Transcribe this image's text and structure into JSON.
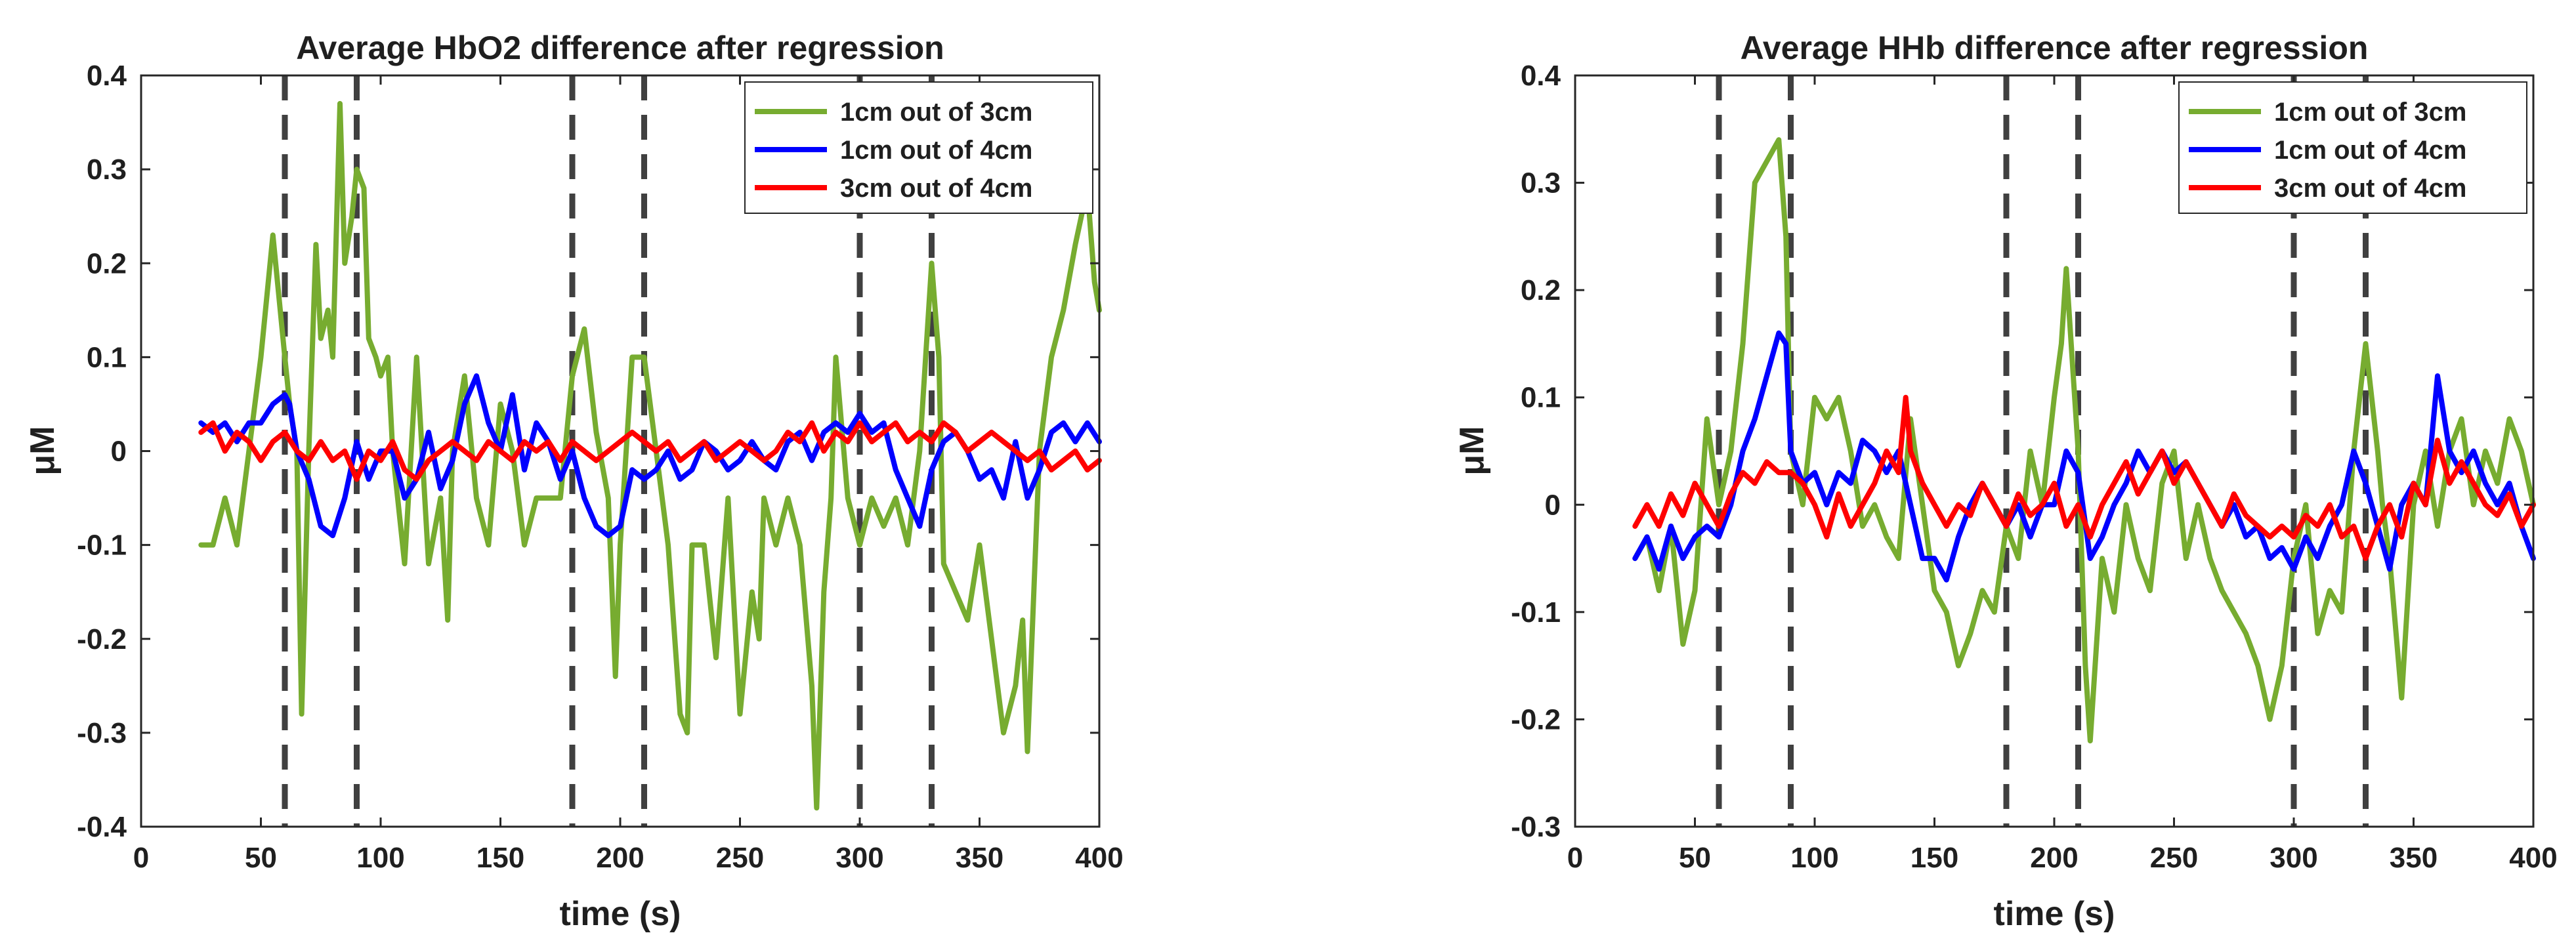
{
  "chart_data": [
    {
      "type": "line",
      "title": "Average HbO2 difference after regression",
      "xlabel": "time (s)",
      "ylabel": "μM",
      "xlim": [
        0,
        400
      ],
      "ylim": [
        -0.4,
        0.4
      ],
      "xticks": [
        0,
        50,
        100,
        150,
        200,
        250,
        300,
        350,
        400
      ],
      "xtick_labels": [
        "0",
        "50",
        "100",
        "150",
        "200",
        "250",
        "300",
        "350",
        "400"
      ],
      "yticks": [
        -0.4,
        -0.3,
        -0.2,
        -0.1,
        0,
        0.1,
        0.2,
        0.3,
        0.4
      ],
      "ytick_labels": [
        "-0.4",
        "-0.3",
        "-0.2",
        "-0.1",
        "0",
        "0.1",
        "0.2",
        "0.3",
        "0.4"
      ],
      "vlines": [
        60,
        90,
        180,
        210,
        300,
        330
      ],
      "legend_position": "top-right",
      "series": [
        {
          "name": "1cm out of 3cm",
          "color": "#77AC30",
          "x": [
            25,
            30,
            35,
            40,
            45,
            50,
            55,
            60,
            62,
            65,
            67,
            70,
            73,
            75,
            78,
            80,
            83,
            85,
            88,
            90,
            93,
            95,
            98,
            100,
            103,
            105,
            110,
            115,
            120,
            125,
            128,
            130,
            135,
            140,
            145,
            150,
            155,
            160,
            165,
            170,
            175,
            180,
            185,
            190,
            195,
            198,
            200,
            205,
            210,
            215,
            220,
            225,
            228,
            230,
            235,
            240,
            245,
            250,
            255,
            258,
            260,
            265,
            270,
            275,
            280,
            282,
            285,
            288,
            290,
            295,
            300,
            305,
            310,
            315,
            320,
            325,
            330,
            333,
            335,
            340,
            345,
            350,
            355,
            360,
            365,
            368,
            370,
            375,
            380,
            385,
            390,
            395,
            398,
            400
          ],
          "values": [
            -0.1,
            -0.1,
            -0.05,
            -0.1,
            0.0,
            0.1,
            0.23,
            0.1,
            0.05,
            0.0,
            -0.28,
            0.0,
            0.22,
            0.12,
            0.15,
            0.1,
            0.37,
            0.2,
            0.25,
            0.3,
            0.28,
            0.12,
            0.1,
            0.08,
            0.1,
            0.0,
            -0.12,
            0.1,
            -0.12,
            -0.05,
            -0.18,
            0.0,
            0.08,
            -0.05,
            -0.1,
            0.05,
            0.0,
            -0.1,
            -0.05,
            -0.05,
            -0.05,
            0.08,
            0.13,
            0.02,
            -0.05,
            -0.24,
            -0.1,
            0.1,
            0.1,
            0.0,
            -0.1,
            -0.28,
            -0.3,
            -0.1,
            -0.1,
            -0.22,
            -0.05,
            -0.28,
            -0.15,
            -0.2,
            -0.05,
            -0.1,
            -0.05,
            -0.1,
            -0.25,
            -0.38,
            -0.15,
            -0.05,
            0.1,
            -0.05,
            -0.1,
            -0.05,
            -0.08,
            -0.05,
            -0.1,
            0.0,
            0.2,
            0.1,
            -0.12,
            -0.15,
            -0.18,
            -0.1,
            -0.2,
            -0.3,
            -0.25,
            -0.18,
            -0.32,
            0.0,
            0.1,
            0.15,
            0.22,
            0.28,
            0.18,
            0.15
          ]
        },
        {
          "name": "1cm out of 4cm",
          "color": "#0000FF",
          "x": [
            25,
            30,
            35,
            40,
            45,
            50,
            55,
            60,
            62,
            65,
            70,
            75,
            80,
            85,
            90,
            95,
            100,
            105,
            110,
            115,
            120,
            125,
            130,
            135,
            140,
            145,
            150,
            155,
            160,
            165,
            170,
            175,
            180,
            185,
            190,
            195,
            200,
            205,
            210,
            215,
            220,
            225,
            230,
            235,
            240,
            245,
            250,
            255,
            260,
            265,
            270,
            275,
            280,
            285,
            290,
            295,
            300,
            305,
            310,
            315,
            320,
            325,
            330,
            335,
            340,
            345,
            350,
            355,
            360,
            365,
            370,
            375,
            380,
            385,
            390,
            395,
            400
          ],
          "values": [
            0.03,
            0.02,
            0.03,
            0.01,
            0.03,
            0.03,
            0.05,
            0.06,
            0.05,
            0.0,
            -0.03,
            -0.08,
            -0.09,
            -0.05,
            0.01,
            -0.03,
            0.0,
            0.0,
            -0.05,
            -0.03,
            0.02,
            -0.04,
            -0.01,
            0.05,
            0.08,
            0.03,
            0.0,
            0.06,
            -0.02,
            0.03,
            0.01,
            -0.03,
            0.0,
            -0.05,
            -0.08,
            -0.09,
            -0.08,
            -0.02,
            -0.03,
            -0.02,
            0.0,
            -0.03,
            -0.02,
            0.01,
            0.0,
            -0.02,
            -0.01,
            0.01,
            -0.01,
            -0.02,
            0.01,
            0.02,
            -0.01,
            0.02,
            0.03,
            0.02,
            0.04,
            0.02,
            0.03,
            -0.02,
            -0.05,
            -0.08,
            -0.02,
            0.01,
            0.02,
            0.0,
            -0.03,
            -0.02,
            -0.05,
            0.01,
            -0.05,
            -0.02,
            0.02,
            0.03,
            0.01,
            0.03,
            0.01
          ]
        },
        {
          "name": "3cm out of 4cm",
          "color": "#FF0000",
          "x": [
            25,
            30,
            35,
            40,
            45,
            50,
            55,
            60,
            65,
            70,
            75,
            80,
            85,
            90,
            95,
            100,
            105,
            110,
            115,
            120,
            125,
            130,
            135,
            140,
            145,
            150,
            155,
            160,
            165,
            170,
            175,
            180,
            185,
            190,
            195,
            200,
            205,
            210,
            215,
            220,
            225,
            230,
            235,
            240,
            245,
            250,
            255,
            260,
            265,
            270,
            275,
            280,
            285,
            290,
            295,
            300,
            305,
            310,
            315,
            320,
            325,
            330,
            335,
            340,
            345,
            350,
            355,
            360,
            365,
            370,
            375,
            380,
            385,
            390,
            395,
            400
          ],
          "values": [
            0.02,
            0.03,
            0.0,
            0.02,
            0.01,
            -0.01,
            0.01,
            0.02,
            0.0,
            -0.01,
            0.01,
            -0.01,
            0.0,
            -0.03,
            0.0,
            -0.01,
            0.01,
            -0.02,
            -0.03,
            -0.01,
            0.0,
            0.01,
            0.0,
            -0.01,
            0.01,
            0.0,
            -0.01,
            0.01,
            0.0,
            0.01,
            -0.01,
            0.01,
            0.0,
            -0.01,
            0.0,
            0.01,
            0.02,
            0.01,
            0.0,
            0.01,
            -0.01,
            0.0,
            0.01,
            -0.01,
            0.0,
            0.01,
            0.0,
            -0.01,
            0.0,
            0.02,
            0.01,
            0.03,
            0.0,
            0.02,
            0.01,
            0.03,
            0.01,
            0.02,
            0.03,
            0.01,
            0.02,
            0.01,
            0.03,
            0.02,
            0.0,
            0.01,
            0.02,
            0.01,
            0.0,
            -0.01,
            0.0,
            -0.02,
            -0.01,
            0.0,
            -0.02,
            -0.01
          ]
        }
      ]
    },
    {
      "type": "line",
      "title": "Average HHb difference after regression",
      "xlabel": "time (s)",
      "ylabel": "μM",
      "xlim": [
        0,
        400
      ],
      "ylim": [
        -0.3,
        0.4
      ],
      "xticks": [
        0,
        50,
        100,
        150,
        200,
        250,
        300,
        350,
        400
      ],
      "xtick_labels": [
        "0",
        "50",
        "100",
        "150",
        "200",
        "250",
        "300",
        "350",
        "400"
      ],
      "yticks": [
        -0.3,
        -0.2,
        -0.1,
        0,
        0.1,
        0.2,
        0.3,
        0.4
      ],
      "ytick_labels": [
        "-0.3",
        "-0.2",
        "-0.1",
        "0",
        "0.1",
        "0.2",
        "0.3",
        "0.4"
      ],
      "vlines": [
        60,
        90,
        180,
        210,
        300,
        330
      ],
      "legend_position": "top-right",
      "series": [
        {
          "name": "1cm out of 3cm",
          "color": "#77AC30",
          "x": [
            25,
            30,
            35,
            40,
            45,
            50,
            55,
            60,
            65,
            70,
            75,
            80,
            85,
            88,
            90,
            95,
            100,
            105,
            110,
            115,
            120,
            125,
            130,
            135,
            140,
            145,
            150,
            155,
            160,
            165,
            170,
            175,
            180,
            185,
            190,
            195,
            200,
            203,
            205,
            210,
            213,
            215,
            220,
            225,
            230,
            235,
            240,
            245,
            250,
            255,
            260,
            265,
            270,
            275,
            280,
            285,
            290,
            295,
            300,
            305,
            310,
            315,
            320,
            325,
            330,
            335,
            337,
            340,
            345,
            350,
            355,
            360,
            365,
            370,
            375,
            380,
            385,
            390,
            395,
            400
          ],
          "values": [
            -0.05,
            -0.03,
            -0.08,
            -0.02,
            -0.13,
            -0.08,
            0.08,
            0.0,
            0.05,
            0.15,
            0.3,
            0.32,
            0.34,
            0.25,
            0.05,
            0.0,
            0.1,
            0.08,
            0.1,
            0.05,
            -0.02,
            0.0,
            -0.03,
            -0.05,
            0.08,
            0.0,
            -0.08,
            -0.1,
            -0.15,
            -0.12,
            -0.08,
            -0.1,
            -0.02,
            -0.05,
            0.05,
            0.0,
            0.1,
            0.15,
            0.22,
            0.05,
            -0.15,
            -0.22,
            -0.05,
            -0.1,
            0.0,
            -0.05,
            -0.08,
            0.02,
            0.05,
            -0.05,
            0.0,
            -0.05,
            -0.08,
            -0.1,
            -0.12,
            -0.15,
            -0.2,
            -0.15,
            -0.05,
            0.0,
            -0.12,
            -0.08,
            -0.1,
            0.05,
            0.15,
            0.05,
            0.0,
            -0.05,
            -0.18,
            0.0,
            0.05,
            -0.02,
            0.05,
            0.08,
            0.0,
            0.05,
            0.02,
            0.08,
            0.05,
            0.0
          ]
        },
        {
          "name": "1cm out of 4cm",
          "color": "#0000FF",
          "x": [
            25,
            30,
            35,
            40,
            45,
            50,
            55,
            60,
            65,
            70,
            75,
            80,
            85,
            88,
            90,
            95,
            100,
            105,
            110,
            115,
            120,
            125,
            130,
            135,
            140,
            145,
            150,
            155,
            160,
            165,
            170,
            175,
            180,
            185,
            190,
            195,
            200,
            205,
            210,
            215,
            220,
            225,
            230,
            235,
            240,
            245,
            250,
            255,
            260,
            265,
            270,
            275,
            280,
            285,
            290,
            295,
            300,
            305,
            310,
            315,
            320,
            325,
            330,
            335,
            340,
            345,
            350,
            355,
            360,
            365,
            370,
            375,
            380,
            385,
            390,
            395,
            400
          ],
          "values": [
            -0.05,
            -0.03,
            -0.06,
            -0.02,
            -0.05,
            -0.03,
            -0.02,
            -0.03,
            0.0,
            0.05,
            0.08,
            0.12,
            0.16,
            0.15,
            0.05,
            0.02,
            0.03,
            0.0,
            0.03,
            0.02,
            0.06,
            0.05,
            0.03,
            0.05,
            0.0,
            -0.05,
            -0.05,
            -0.07,
            -0.03,
            0.0,
            0.02,
            0.0,
            -0.02,
            0.0,
            -0.03,
            0.0,
            0.0,
            0.05,
            0.03,
            -0.05,
            -0.03,
            0.0,
            0.02,
            0.05,
            0.03,
            0.05,
            0.03,
            0.04,
            0.02,
            0.0,
            -0.02,
            0.0,
            -0.03,
            -0.02,
            -0.05,
            -0.04,
            -0.06,
            -0.03,
            -0.05,
            -0.02,
            0.0,
            0.05,
            0.02,
            -0.02,
            -0.06,
            0.0,
            0.02,
            0.0,
            0.12,
            0.05,
            0.03,
            0.05,
            0.02,
            0.0,
            0.02,
            -0.02,
            -0.05
          ]
        },
        {
          "name": "3cm out of 4cm",
          "color": "#FF0000",
          "x": [
            25,
            30,
            35,
            40,
            45,
            50,
            55,
            60,
            65,
            70,
            75,
            80,
            85,
            90,
            95,
            100,
            105,
            110,
            115,
            120,
            125,
            130,
            135,
            138,
            140,
            145,
            150,
            155,
            160,
            165,
            170,
            175,
            180,
            185,
            190,
            195,
            200,
            205,
            210,
            215,
            220,
            225,
            230,
            235,
            240,
            245,
            250,
            255,
            260,
            265,
            270,
            275,
            280,
            285,
            290,
            295,
            300,
            305,
            310,
            315,
            320,
            325,
            330,
            335,
            340,
            345,
            350,
            355,
            360,
            365,
            370,
            375,
            380,
            385,
            390,
            395,
            400
          ],
          "values": [
            -0.02,
            0.0,
            -0.02,
            0.01,
            -0.01,
            0.02,
            0.0,
            -0.02,
            0.01,
            0.03,
            0.02,
            0.04,
            0.03,
            0.03,
            0.02,
            0.0,
            -0.03,
            0.01,
            -0.02,
            0.0,
            0.02,
            0.05,
            0.03,
            0.1,
            0.05,
            0.02,
            0.0,
            -0.02,
            0.0,
            -0.01,
            0.02,
            0.0,
            -0.02,
            0.01,
            -0.01,
            0.0,
            0.02,
            -0.02,
            0.0,
            -0.03,
            0.0,
            0.02,
            0.04,
            0.01,
            0.03,
            0.05,
            0.02,
            0.04,
            0.02,
            0.0,
            -0.02,
            0.01,
            -0.01,
            -0.02,
            -0.03,
            -0.02,
            -0.03,
            -0.01,
            -0.02,
            0.0,
            -0.03,
            -0.02,
            -0.05,
            -0.02,
            0.0,
            -0.03,
            0.02,
            0.0,
            0.06,
            0.02,
            0.04,
            0.02,
            0.0,
            -0.01,
            0.01,
            -0.02,
            0.0
          ]
        }
      ]
    }
  ]
}
